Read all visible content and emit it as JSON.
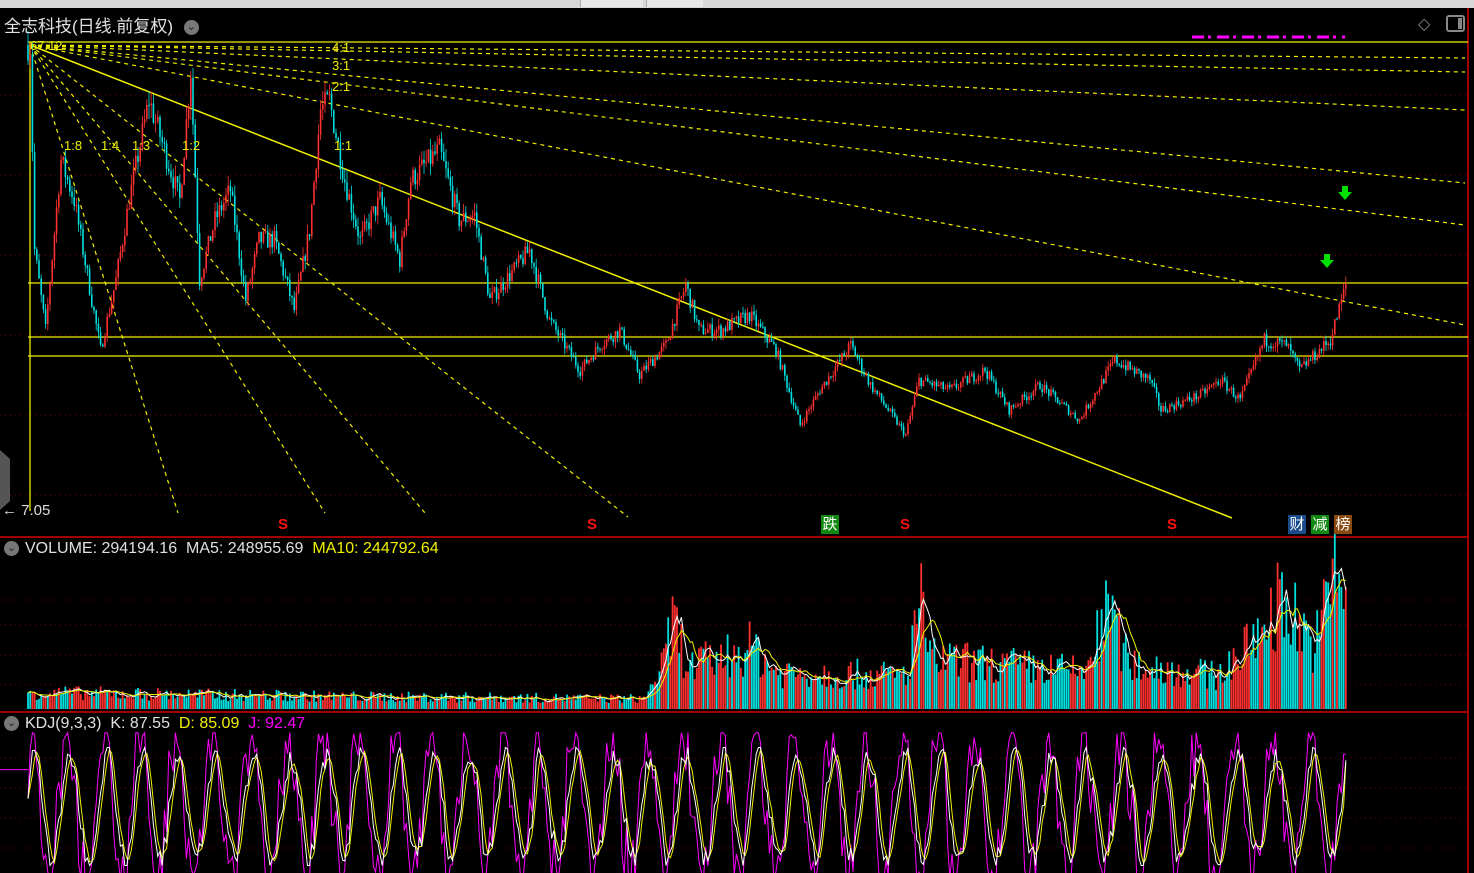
{
  "header": {
    "title": "全志科技(日线.前复权)",
    "high_label": "67.12",
    "low_label": "7.05"
  },
  "fan_labels": [
    "4:1",
    "3:1",
    "2:1",
    "1:1",
    "1:2",
    "1:3",
    "1:4",
    "1:8"
  ],
  "markers": {
    "sell_label": "S",
    "drop_label": "跌",
    "finance_label": "财",
    "reduce_label": "减",
    "rank_label": "榜"
  },
  "volume_panel": {
    "name": "VOLUME",
    "value": "294194.16",
    "ma5_label": "MA5",
    "ma5": "248955.69",
    "ma10_label": "MA10",
    "ma10": "244792.64"
  },
  "kdj_panel": {
    "name": "KDJ(9,3,3)",
    "k_label": "K",
    "k": "87.55",
    "d_label": "D",
    "d": "85.09",
    "j_label": "J",
    "j": "92.47"
  },
  "colors": {
    "up": "#ff3030",
    "down": "#00e0e0",
    "lines": "#f0f000",
    "kdj_j": "#ff00ff",
    "kdj_k": "#ffffff",
    "divider": "#a00000"
  },
  "chart_data": {
    "type": "candlestick",
    "title": "全志科技(日线.前复权)",
    "ylim": [
      7.05,
      67.12
    ],
    "close_keypoints": [
      [
        1,
        66.74
      ],
      [
        3,
        40.48
      ],
      [
        8,
        30.23
      ],
      [
        15,
        52.01
      ],
      [
        21,
        46.88
      ],
      [
        33,
        27.67
      ],
      [
        40,
        36.64
      ],
      [
        46,
        46.88
      ],
      [
        55,
        59.69
      ],
      [
        62,
        53.29
      ],
      [
        69,
        46.88
      ],
      [
        74,
        63.53
      ],
      [
        78,
        36.64
      ],
      [
        85,
        44.32
      ],
      [
        92,
        48.16
      ],
      [
        99,
        34.07
      ],
      [
        105,
        41.76
      ],
      [
        112,
        41.76
      ],
      [
        121,
        32.79
      ],
      [
        128,
        43.04
      ],
      [
        133,
        58.41
      ],
      [
        137,
        59.69
      ],
      [
        144,
        49.44
      ],
      [
        151,
        41.76
      ],
      [
        160,
        46.88
      ],
      [
        169,
        39.2
      ],
      [
        174,
        49.44
      ],
      [
        187,
        53.29
      ],
      [
        196,
        44.32
      ],
      [
        203,
        44.96
      ],
      [
        210,
        34.07
      ],
      [
        228,
        40.48
      ],
      [
        237,
        31.51
      ],
      [
        251,
        25.11
      ],
      [
        260,
        28.31
      ],
      [
        269,
        30.23
      ],
      [
        278,
        24.47
      ],
      [
        290,
        28.31
      ],
      [
        299,
        35.99
      ],
      [
        305,
        30.23
      ],
      [
        315,
        30.23
      ],
      [
        328,
        32.15
      ],
      [
        340,
        27.67
      ],
      [
        351,
        18.06
      ],
      [
        360,
        22.55
      ],
      [
        374,
        28.31
      ],
      [
        383,
        23.19
      ],
      [
        399,
        16.78
      ],
      [
        405,
        23.83
      ],
      [
        419,
        22.55
      ],
      [
        435,
        25.11
      ],
      [
        446,
        19.99
      ],
      [
        460,
        23.19
      ],
      [
        478,
        18.7
      ],
      [
        494,
        26.39
      ],
      [
        510,
        23.83
      ],
      [
        515,
        19.99
      ],
      [
        533,
        21.91
      ],
      [
        542,
        23.83
      ],
      [
        551,
        21.27
      ],
      [
        562,
        28.95
      ],
      [
        572,
        28.31
      ],
      [
        578,
        25.11
      ],
      [
        592,
        28.95
      ],
      [
        599,
        35.99
      ]
    ],
    "horizontal_levels": [
      67.12,
      36.25,
      29.34,
      26.9
    ],
    "volume_keypoints": [
      [
        0,
        40000
      ],
      [
        150,
        30000
      ],
      [
        280,
        25000
      ],
      [
        290,
        120000
      ],
      [
        293,
        220000
      ],
      [
        300,
        100000
      ],
      [
        330,
        150000
      ],
      [
        340,
        90000
      ],
      [
        400,
        80000
      ],
      [
        405,
        285000
      ],
      [
        410,
        120000
      ],
      [
        480,
        90000
      ],
      [
        492,
        247000
      ],
      [
        500,
        110000
      ],
      [
        540,
        80000
      ],
      [
        555,
        150000
      ],
      [
        570,
        270000
      ],
      [
        585,
        150000
      ],
      [
        595,
        348000
      ],
      [
        599,
        294194.16
      ]
    ],
    "volume_ylim": [
      0,
      360000
    ],
    "kdj_ylim": [
      0,
      100
    ],
    "kdj_last": {
      "K": 87.55,
      "D": 85.09,
      "J": 92.47
    }
  }
}
